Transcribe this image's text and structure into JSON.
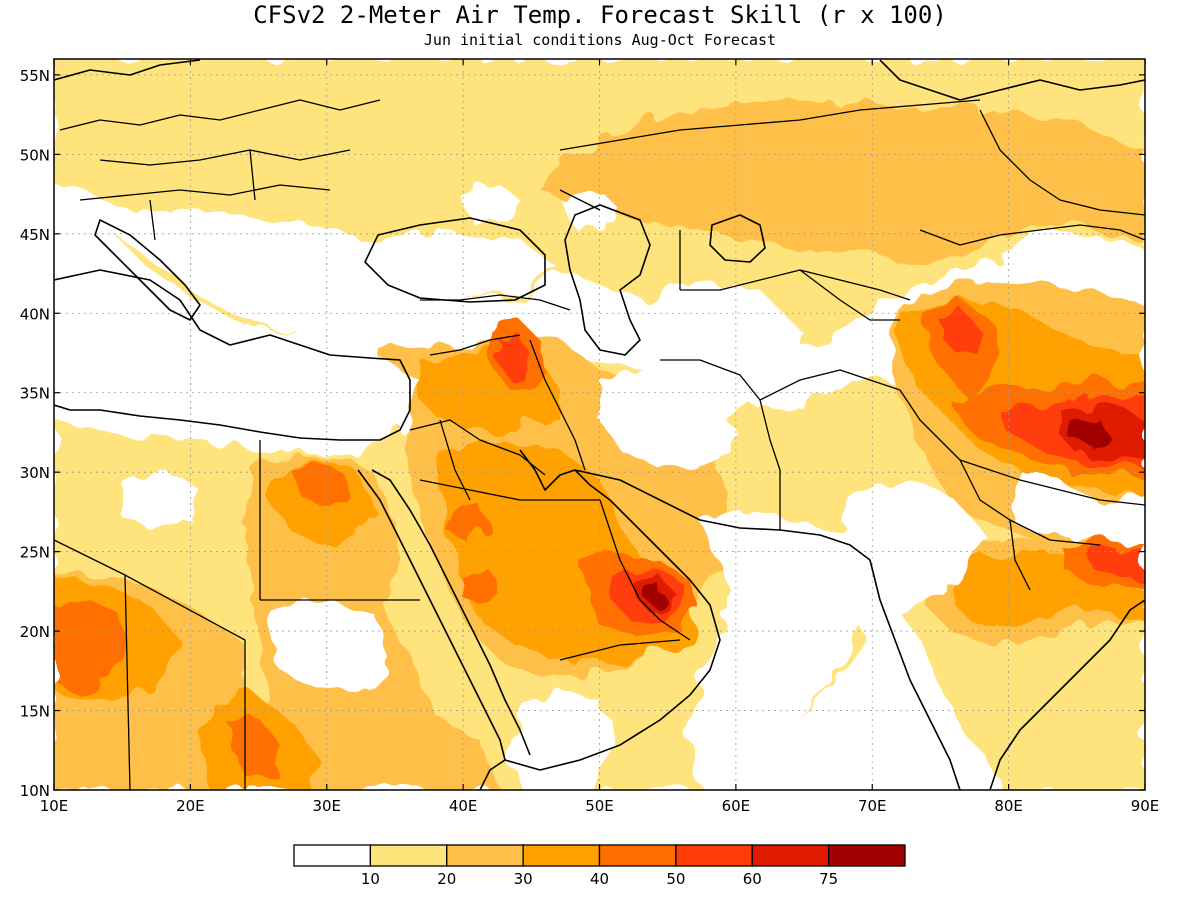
{
  "title": "CFSv2 2-Meter Air Temp. Forecast Skill (r x 100)",
  "subtitle": "Jun initial conditions  Aug-Oct Forecast",
  "map": {
    "lon_range": [
      10,
      90
    ],
    "lat_range": [
      10,
      56
    ],
    "lon_ticks": [
      {
        "value": 10,
        "label": "10E"
      },
      {
        "value": 20,
        "label": "20E"
      },
      {
        "value": 30,
        "label": "30E"
      },
      {
        "value": 40,
        "label": "40E"
      },
      {
        "value": 50,
        "label": "50E"
      },
      {
        "value": 60,
        "label": "60E"
      },
      {
        "value": 70,
        "label": "70E"
      },
      {
        "value": 80,
        "label": "80E"
      },
      {
        "value": 90,
        "label": "90E"
      }
    ],
    "lat_ticks": [
      {
        "value": 10,
        "label": "10N"
      },
      {
        "value": 15,
        "label": "15N"
      },
      {
        "value": 20,
        "label": "20N"
      },
      {
        "value": 25,
        "label": "25N"
      },
      {
        "value": 30,
        "label": "30N"
      },
      {
        "value": 35,
        "label": "35N"
      },
      {
        "value": 40,
        "label": "40N"
      },
      {
        "value": 45,
        "label": "45N"
      },
      {
        "value": 50,
        "label": "50N"
      },
      {
        "value": 55,
        "label": "55N"
      }
    ],
    "grid": true
  },
  "colorbar": {
    "colors": [
      "#ffffff",
      "#ffe37b",
      "#ffc04a",
      "#ffa100",
      "#ff6f00",
      "#ff3c0a",
      "#e01a00",
      "#a00000"
    ],
    "labels": [
      "10",
      "20",
      "30",
      "40",
      "50",
      "60",
      "75"
    ]
  }
}
